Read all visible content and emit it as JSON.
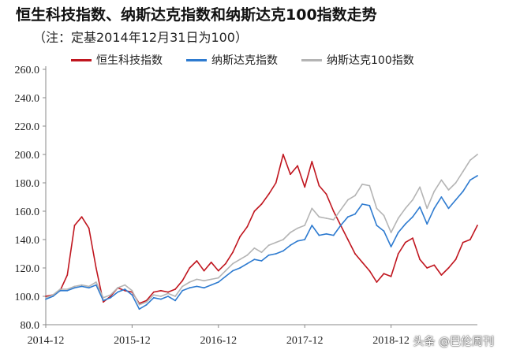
{
  "title": "恒生科技指数、纳斯达克指数和纳斯达克100指数走势",
  "subtitle": "（注：定基2014年12月31日为100）",
  "watermark": "头条 @巴伦周刊",
  "chart_data": {
    "type": "line",
    "ylim": [
      80,
      260
    ],
    "yticks": [
      "80.0",
      "100.0",
      "120.0",
      "140.0",
      "160.0",
      "180.0",
      "200.0",
      "220.0",
      "240.0",
      "260.0"
    ],
    "xlim": [
      "2014-12",
      "2019-12"
    ],
    "xticks": [
      "2014-12",
      "2015-12",
      "2016-12",
      "2017-12",
      "2018-12"
    ],
    "grid": false,
    "legend": "top",
    "series": [
      {
        "name": "恒生科技指数",
        "color": "#c0161f",
        "points": [
          [
            "2014-12",
            100
          ],
          [
            "2015-01",
            101
          ],
          [
            "2015-02",
            104
          ],
          [
            "2015-03",
            115
          ],
          [
            "2015-04",
            150
          ],
          [
            "2015-05",
            156
          ],
          [
            "2015-06",
            148
          ],
          [
            "2015-07",
            120
          ],
          [
            "2015-08",
            96
          ],
          [
            "2015-09",
            100
          ],
          [
            "2015-10",
            106
          ],
          [
            "2015-11",
            104
          ],
          [
            "2015-12",
            103
          ],
          [
            "2016-01",
            95
          ],
          [
            "2016-02",
            97
          ],
          [
            "2016-03",
            103
          ],
          [
            "2016-04",
            104
          ],
          [
            "2016-05",
            103
          ],
          [
            "2016-06",
            105
          ],
          [
            "2016-07",
            111
          ],
          [
            "2016-08",
            120
          ],
          [
            "2016-09",
            125
          ],
          [
            "2016-10",
            118
          ],
          [
            "2016-11",
            124
          ],
          [
            "2016-12",
            118
          ],
          [
            "2017-01",
            123
          ],
          [
            "2017-02",
            131
          ],
          [
            "2017-03",
            142
          ],
          [
            "2017-04",
            149
          ],
          [
            "2017-05",
            160
          ],
          [
            "2017-06",
            165
          ],
          [
            "2017-07",
            172
          ],
          [
            "2017-08",
            180
          ],
          [
            "2017-09",
            200
          ],
          [
            "2017-10",
            186
          ],
          [
            "2017-11",
            192
          ],
          [
            "2017-12",
            177
          ],
          [
            "2018-01",
            195
          ],
          [
            "2018-02",
            178
          ],
          [
            "2018-03",
            172
          ],
          [
            "2018-04",
            160
          ],
          [
            "2018-05",
            150
          ],
          [
            "2018-06",
            140
          ],
          [
            "2018-07",
            130
          ],
          [
            "2018-08",
            124
          ],
          [
            "2018-09",
            118
          ],
          [
            "2018-10",
            110
          ],
          [
            "2018-11",
            116
          ],
          [
            "2018-12",
            114
          ],
          [
            "2019-01",
            130
          ],
          [
            "2019-02",
            138
          ],
          [
            "2019-03",
            141
          ],
          [
            "2019-04",
            126
          ],
          [
            "2019-05",
            120
          ],
          [
            "2019-06",
            122
          ],
          [
            "2019-07",
            115
          ],
          [
            "2019-08",
            120
          ],
          [
            "2019-09",
            126
          ],
          [
            "2019-10",
            138
          ],
          [
            "2019-11",
            140
          ],
          [
            "2019-12",
            150
          ]
        ]
      },
      {
        "name": "纳斯达克指数",
        "color": "#2e7bd0",
        "points": [
          [
            "2014-12",
            98
          ],
          [
            "2015-01",
            100
          ],
          [
            "2015-02",
            104
          ],
          [
            "2015-03",
            104
          ],
          [
            "2015-04",
            106
          ],
          [
            "2015-05",
            107
          ],
          [
            "2015-06",
            106
          ],
          [
            "2015-07",
            108
          ],
          [
            "2015-08",
            97
          ],
          [
            "2015-09",
            99
          ],
          [
            "2015-10",
            103
          ],
          [
            "2015-11",
            105
          ],
          [
            "2015-12",
            101
          ],
          [
            "2016-01",
            91
          ],
          [
            "2016-02",
            94
          ],
          [
            "2016-03",
            99
          ],
          [
            "2016-04",
            98
          ],
          [
            "2016-05",
            100
          ],
          [
            "2016-06",
            97
          ],
          [
            "2016-07",
            104
          ],
          [
            "2016-08",
            106
          ],
          [
            "2016-09",
            107
          ],
          [
            "2016-10",
            106
          ],
          [
            "2016-11",
            108
          ],
          [
            "2016-12",
            110
          ],
          [
            "2017-01",
            114
          ],
          [
            "2017-02",
            118
          ],
          [
            "2017-03",
            120
          ],
          [
            "2017-04",
            123
          ],
          [
            "2017-05",
            126
          ],
          [
            "2017-06",
            125
          ],
          [
            "2017-07",
            129
          ],
          [
            "2017-08",
            130
          ],
          [
            "2017-09",
            132
          ],
          [
            "2017-10",
            136
          ],
          [
            "2017-11",
            139
          ],
          [
            "2017-12",
            140
          ],
          [
            "2018-01",
            150
          ],
          [
            "2018-02",
            143
          ],
          [
            "2018-03",
            144
          ],
          [
            "2018-04",
            143
          ],
          [
            "2018-05",
            150
          ],
          [
            "2018-06",
            156
          ],
          [
            "2018-07",
            158
          ],
          [
            "2018-08",
            165
          ],
          [
            "2018-09",
            164
          ],
          [
            "2018-10",
            150
          ],
          [
            "2018-11",
            146
          ],
          [
            "2018-12",
            135
          ],
          [
            "2019-01",
            145
          ],
          [
            "2019-02",
            151
          ],
          [
            "2019-03",
            156
          ],
          [
            "2019-04",
            163
          ],
          [
            "2019-05",
            151
          ],
          [
            "2019-06",
            162
          ],
          [
            "2019-07",
            170
          ],
          [
            "2019-08",
            162
          ],
          [
            "2019-09",
            168
          ],
          [
            "2019-10",
            174
          ],
          [
            "2019-11",
            182
          ],
          [
            "2019-12",
            185
          ]
        ]
      },
      {
        "name": "纳斯达克100指数",
        "color": "#b4b4b4",
        "points": [
          [
            "2014-12",
            99
          ],
          [
            "2015-01",
            101
          ],
          [
            "2015-02",
            105
          ],
          [
            "2015-03",
            105
          ],
          [
            "2015-04",
            107
          ],
          [
            "2015-05",
            108
          ],
          [
            "2015-06",
            107
          ],
          [
            "2015-07",
            110
          ],
          [
            "2015-08",
            99
          ],
          [
            "2015-09",
            101
          ],
          [
            "2015-10",
            106
          ],
          [
            "2015-11",
            108
          ],
          [
            "2015-12",
            104
          ],
          [
            "2016-01",
            94
          ],
          [
            "2016-02",
            96
          ],
          [
            "2016-03",
            101
          ],
          [
            "2016-04",
            100
          ],
          [
            "2016-05",
            102
          ],
          [
            "2016-06",
            100
          ],
          [
            "2016-07",
            107
          ],
          [
            "2016-08",
            110
          ],
          [
            "2016-09",
            112
          ],
          [
            "2016-10",
            111
          ],
          [
            "2016-11",
            112
          ],
          [
            "2016-12",
            113
          ],
          [
            "2017-01",
            118
          ],
          [
            "2017-02",
            123
          ],
          [
            "2017-03",
            126
          ],
          [
            "2017-04",
            129
          ],
          [
            "2017-05",
            134
          ],
          [
            "2017-06",
            131
          ],
          [
            "2017-07",
            136
          ],
          [
            "2017-08",
            138
          ],
          [
            "2017-09",
            140
          ],
          [
            "2017-10",
            145
          ],
          [
            "2017-11",
            148
          ],
          [
            "2017-12",
            150
          ],
          [
            "2018-01",
            162
          ],
          [
            "2018-02",
            156
          ],
          [
            "2018-03",
            155
          ],
          [
            "2018-04",
            154
          ],
          [
            "2018-05",
            161
          ],
          [
            "2018-06",
            168
          ],
          [
            "2018-07",
            171
          ],
          [
            "2018-08",
            179
          ],
          [
            "2018-09",
            178
          ],
          [
            "2018-10",
            162
          ],
          [
            "2018-11",
            157
          ],
          [
            "2018-12",
            145
          ],
          [
            "2019-01",
            155
          ],
          [
            "2019-02",
            162
          ],
          [
            "2019-03",
            168
          ],
          [
            "2019-04",
            177
          ],
          [
            "2019-05",
            162
          ],
          [
            "2019-06",
            174
          ],
          [
            "2019-07",
            182
          ],
          [
            "2019-08",
            175
          ],
          [
            "2019-09",
            180
          ],
          [
            "2019-10",
            188
          ],
          [
            "2019-11",
            196
          ],
          [
            "2019-12",
            200
          ]
        ]
      }
    ]
  }
}
